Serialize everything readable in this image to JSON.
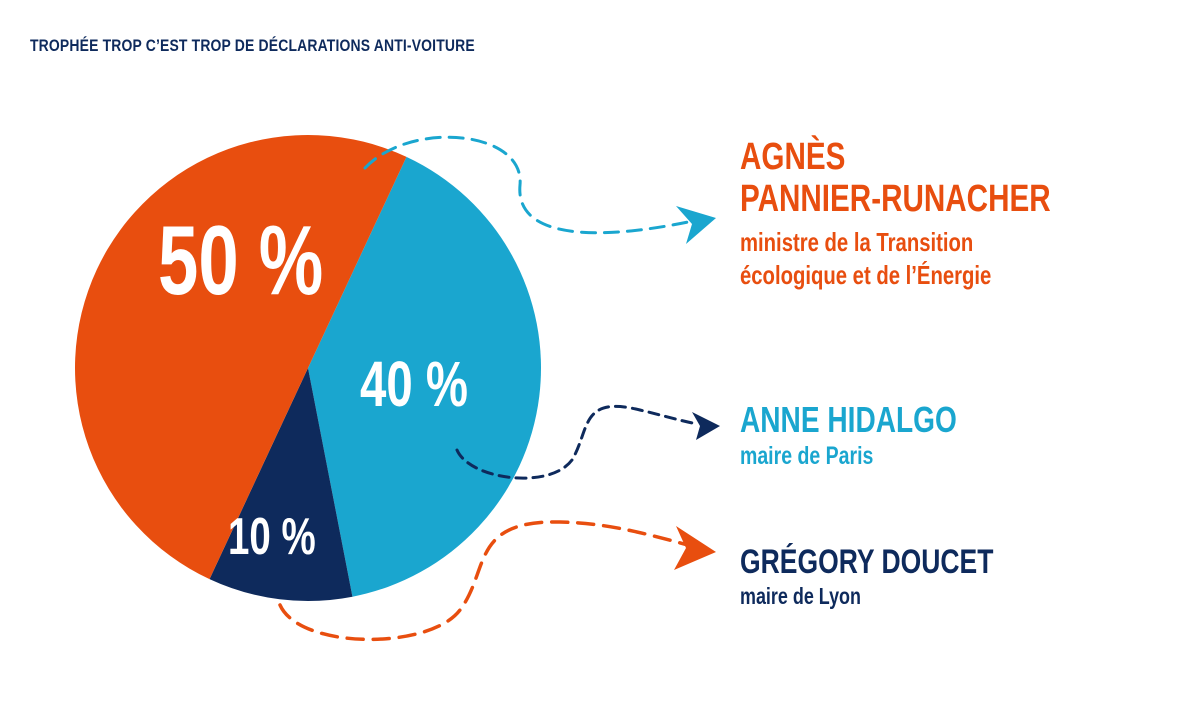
{
  "title": "TROPHÉE TROP C’EST TROP DE DÉCLARATIONS ANTI-VOITURE",
  "colors": {
    "orange": "#e84e0f",
    "cyan": "#1aa6cf",
    "navy": "#0e2a5c"
  },
  "chart_data": {
    "type": "pie",
    "title": "TROPHÉE TROP C’EST TROP DE DÉCLARATIONS ANTI-VOITURE",
    "series": [
      {
        "name": "AGNÈS PANNIER-RUNACHER",
        "value": 50,
        "label": "50 %",
        "color": "#e84e0f"
      },
      {
        "name": "ANNE HIDALGO",
        "value": 40,
        "label": "40 %",
        "color": "#1aa6cf"
      },
      {
        "name": "GRÉGORY DOUCET",
        "value": 10,
        "label": "10 %",
        "color": "#0e2a5c"
      }
    ]
  },
  "legend": [
    {
      "name_lines": [
        "AGNÈS",
        "PANNIER-RUNACHER"
      ],
      "role_lines": [
        "ministre de la Transition",
        "écologique et de l’Énergie"
      ]
    },
    {
      "name_lines": [
        "ANNE HIDALGO"
      ],
      "role_lines": [
        "maire de Paris"
      ]
    },
    {
      "name_lines": [
        "GRÉGORY DOUCET"
      ],
      "role_lines": [
        "maire de Lyon"
      ]
    }
  ]
}
